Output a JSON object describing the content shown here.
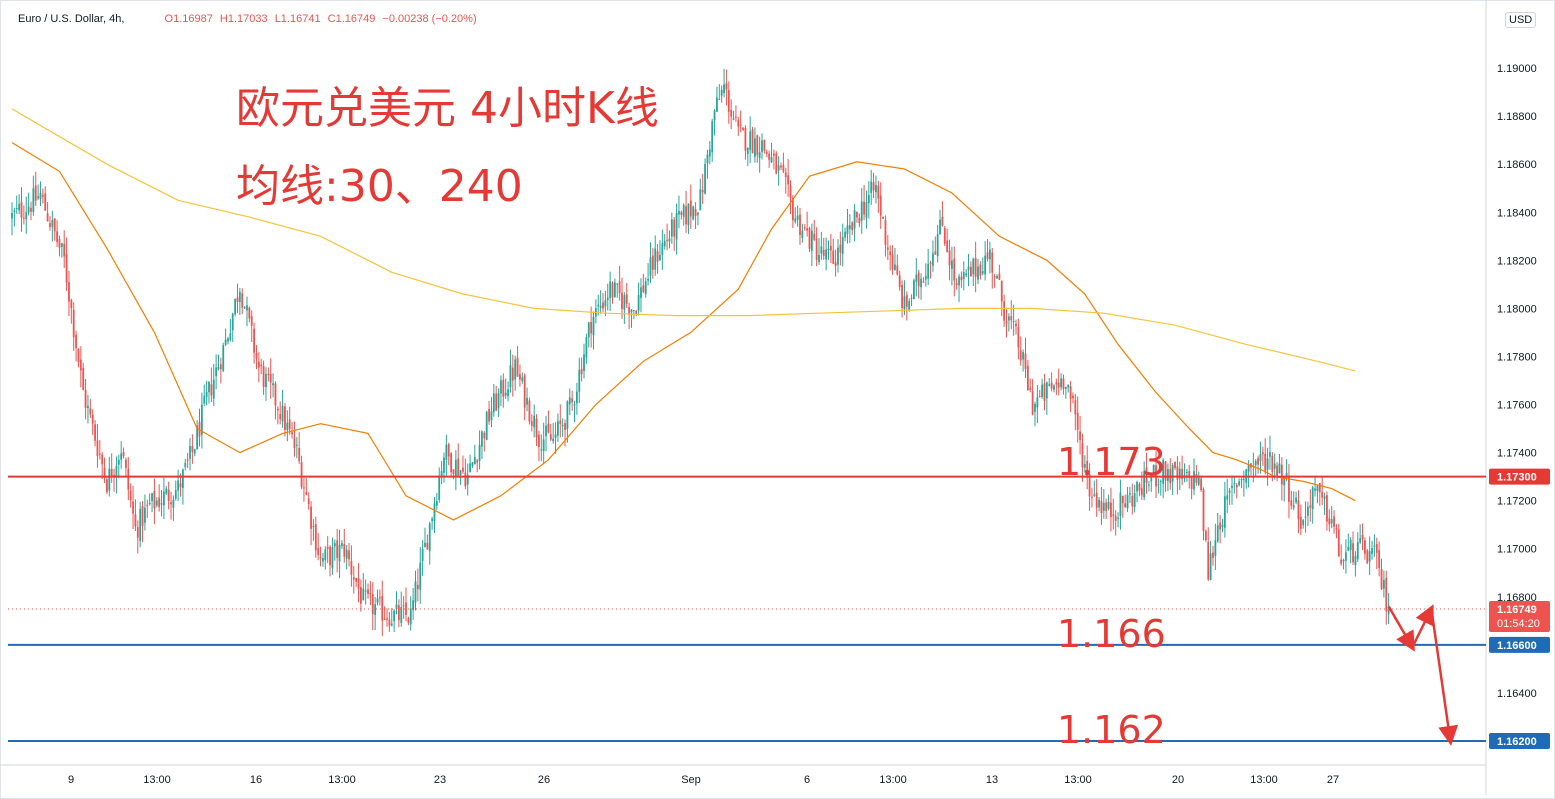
{
  "legend": {
    "symbol": "Euro / U.S. Dollar, 4h,",
    "open": "O1.16987",
    "high": "H1.17033",
    "low": "L1.16741",
    "close": "C1.16749",
    "change": "−0.00238 (−0.20%)"
  },
  "currency": "USD",
  "annotations": {
    "title_line1": "欧元兑美元 4小时K线",
    "title_line2": "均线:30、240",
    "level_1173": "1.173",
    "level_1166": "1.166",
    "level_1162": "1.162"
  },
  "colors": {
    "up": "#26a69a",
    "down": "#ef5350",
    "ma30": "#f57c00",
    "ma240": "#f6c33a",
    "resistance_line": "#e53935",
    "support_line": "#1e6bb8",
    "annotation_text": "#e53935",
    "price_tag": "#ef5350"
  },
  "chart_data": {
    "type": "candlestick",
    "symbol": "EUR/USD",
    "timeframe": "4h",
    "ylim": [
      1.161,
      1.1925
    ],
    "y_ticks": [
      "1.19000",
      "1.18800",
      "1.18600",
      "1.18400",
      "1.18200",
      "1.18000",
      "1.17800",
      "1.17600",
      "1.17400",
      "1.17200",
      "1.17000",
      "1.16800",
      "1.16400"
    ],
    "x_ticks": [
      "9",
      "13:00",
      "16",
      "13:00",
      "23",
      "26",
      "Sep",
      "6",
      "13:00",
      "13",
      "13:00",
      "20",
      "13:00",
      "27"
    ],
    "price_path": [
      [
        0,
        1.1838
      ],
      [
        12,
        1.1847
      ],
      [
        22,
        1.182
      ],
      [
        30,
        1.1765
      ],
      [
        40,
        1.1728
      ],
      [
        46,
        1.1742
      ],
      [
        52,
        1.1708
      ],
      [
        58,
        1.1718
      ],
      [
        70,
        1.1725
      ],
      [
        76,
        1.174
      ],
      [
        82,
        1.1762
      ],
      [
        90,
        1.1786
      ],
      [
        96,
        1.181
      ],
      [
        104,
        1.1775
      ],
      [
        112,
        1.176
      ],
      [
        120,
        1.174
      ],
      [
        130,
        1.1695
      ],
      [
        140,
        1.17
      ],
      [
        148,
        1.1678
      ],
      [
        160,
        1.1672
      ],
      [
        168,
        1.1672
      ],
      [
        176,
        1.171
      ],
      [
        182,
        1.174
      ],
      [
        192,
        1.173
      ],
      [
        202,
        1.1758
      ],
      [
        212,
        1.1775
      ],
      [
        222,
        1.1747
      ],
      [
        228,
        1.1745
      ],
      [
        236,
        1.176
      ],
      [
        244,
        1.1795
      ],
      [
        252,
        1.1808
      ],
      [
        262,
        1.18
      ],
      [
        272,
        1.1823
      ],
      [
        280,
        1.1835
      ],
      [
        290,
        1.1845
      ],
      [
        296,
        1.1882
      ],
      [
        300,
        1.1892
      ],
      [
        306,
        1.1872
      ],
      [
        316,
        1.1868
      ],
      [
        324,
        1.1855
      ],
      [
        330,
        1.1838
      ],
      [
        340,
        1.1823
      ],
      [
        346,
        1.182
      ],
      [
        352,
        1.183
      ],
      [
        358,
        1.1842
      ],
      [
        364,
        1.185
      ],
      [
        368,
        1.183
      ],
      [
        376,
        1.18
      ],
      [
        384,
        1.1815
      ],
      [
        392,
        1.1835
      ],
      [
        398,
        1.1808
      ],
      [
        404,
        1.1815
      ],
      [
        412,
        1.1822
      ],
      [
        418,
        1.18
      ],
      [
        424,
        1.1785
      ],
      [
        430,
        1.176
      ],
      [
        436,
        1.1765
      ],
      [
        444,
        1.1772
      ],
      [
        454,
        1.1725
      ],
      [
        462,
        1.1715
      ],
      [
        470,
        1.172
      ],
      [
        480,
        1.173
      ],
      [
        486,
        1.1732
      ],
      [
        494,
        1.1728
      ],
      [
        500,
        1.173
      ],
      [
        504,
        1.169
      ],
      [
        508,
        1.171
      ],
      [
        516,
        1.1728
      ],
      [
        522,
        1.1735
      ],
      [
        530,
        1.1738
      ],
      [
        536,
        1.173
      ],
      [
        544,
        1.171
      ],
      [
        548,
        1.1725
      ],
      [
        556,
        1.1712
      ],
      [
        560,
        1.1695
      ],
      [
        566,
        1.17
      ],
      [
        574,
        1.1697
      ],
      [
        580,
        1.16749
      ]
    ],
    "ma_periods": [
      30,
      240
    ],
    "series": [
      {
        "name": "MA30",
        "x": [
          0,
          20,
          40,
          60,
          78,
          96,
          114,
          130,
          150,
          166,
          186,
          206,
          226,
          246,
          266,
          286,
          306,
          320,
          336,
          356,
          376,
          396,
          416,
          436,
          452,
          466,
          482,
          496,
          506,
          516,
          526,
          532,
          544,
          556,
          566
        ],
        "values": [
          1.1869,
          1.1857,
          1.1825,
          1.179,
          1.175,
          1.174,
          1.1748,
          1.1752,
          1.1748,
          1.1722,
          1.1712,
          1.1722,
          1.1737,
          1.176,
          1.1778,
          1.179,
          1.1808,
          1.1833,
          1.1855,
          1.1861,
          1.1858,
          1.1848,
          1.183,
          1.182,
          1.1806,
          1.1785,
          1.1765,
          1.175,
          1.174,
          1.1737,
          1.1733,
          1.173,
          1.1728,
          1.1725,
          1.172
        ]
      },
      {
        "name": "MA240",
        "x": [
          0,
          40,
          70,
          100,
          130,
          160,
          190,
          220,
          250,
          280,
          310,
          340,
          370,
          400,
          430,
          460,
          490,
          520,
          550,
          566
        ],
        "values": [
          1.1883,
          1.186,
          1.1845,
          1.1838,
          1.183,
          1.1815,
          1.1806,
          1.18,
          1.1798,
          1.1797,
          1.1797,
          1.1798,
          1.1799,
          1.18,
          1.18,
          1.1798,
          1.1793,
          1.1785,
          1.1778,
          1.1774
        ]
      }
    ],
    "horizontal_levels": [
      {
        "value": 1.173,
        "label": "1.17300",
        "color": "#e53935"
      },
      {
        "value": 1.166,
        "label": "1.16600",
        "color": "#1e6bb8"
      },
      {
        "value": 1.162,
        "label": "1.16200",
        "color": "#1e6bb8"
      }
    ],
    "last_price": {
      "value": 1.16749,
      "label": "1.16749",
      "countdown": "01:54:20"
    },
    "projection_arrows": [
      [
        [
          580,
          1.1676
        ],
        [
          590,
          1.1659
        ]
      ],
      [
        [
          590,
          1.1659
        ],
        [
          598,
          1.1675
        ]
      ],
      [
        [
          598,
          1.1675
        ],
        [
          606,
          1.162
        ]
      ]
    ]
  }
}
